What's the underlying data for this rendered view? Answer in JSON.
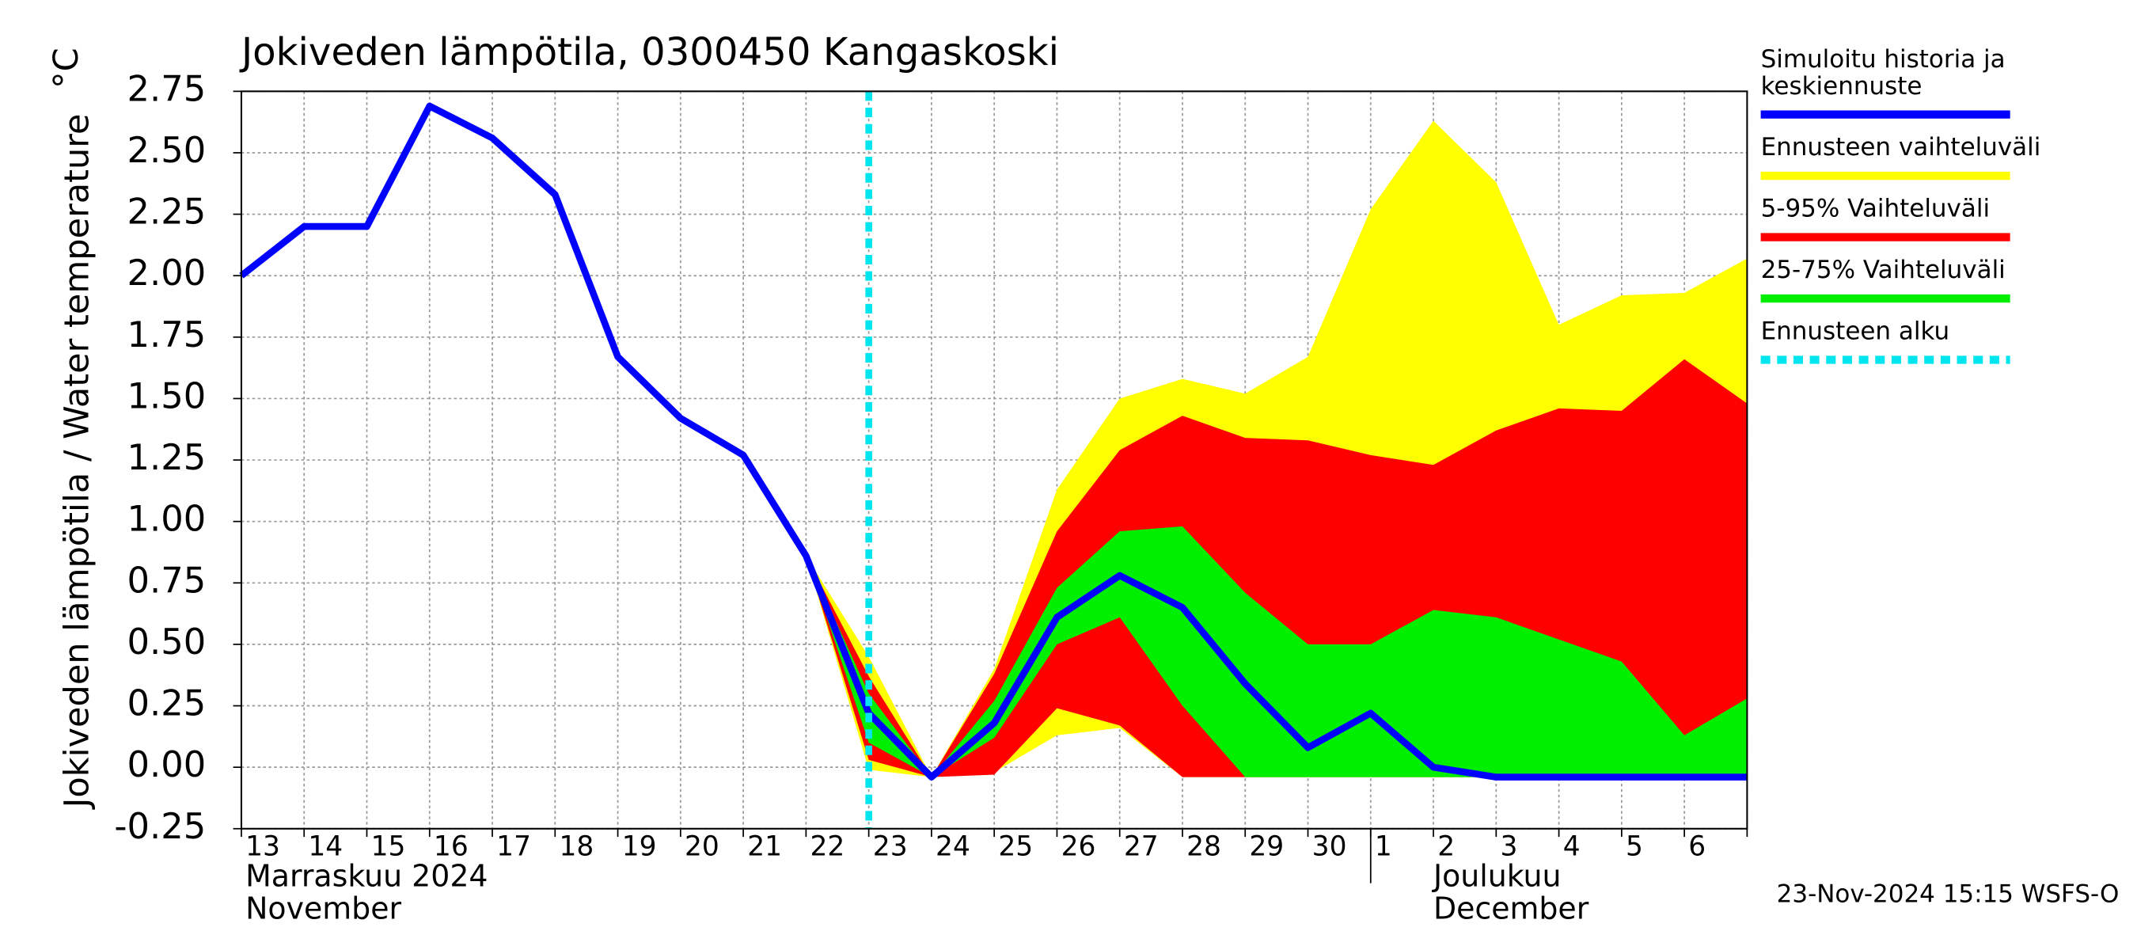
{
  "chart_data": {
    "type": "band-line",
    "title": "Jokiveden lämpötila, 0300450 Kangaskoski",
    "y_label": "Jokiveden lämpötila / Water temperature",
    "y_unit": "°C",
    "categories": [
      "13",
      "14",
      "15",
      "16",
      "17",
      "18",
      "19",
      "20",
      "21",
      "22",
      "23",
      "24",
      "25",
      "26",
      "27",
      "28",
      "29",
      "30",
      "1",
      "2",
      "3",
      "4",
      "5",
      "6",
      null
    ],
    "month_labels": [
      {
        "fi": "Marraskuu 2024",
        "en": "November",
        "start": 0
      },
      {
        "fi": "Joulukuu",
        "en": "December",
        "start": 18
      }
    ],
    "ylim": [
      -0.25,
      2.75
    ],
    "yticks": [
      {
        "value": -0.25,
        "label": "-0.25"
      },
      {
        "value": 0,
        "label": "0.00"
      },
      {
        "value": 0.25,
        "label": "0.25"
      },
      {
        "value": 0.5,
        "label": "0.50"
      },
      {
        "value": 0.75,
        "label": "0.75"
      },
      {
        "value": 1,
        "label": "1.00"
      },
      {
        "value": 1.25,
        "label": "1.25"
      },
      {
        "value": 1.5,
        "label": "1.50"
      },
      {
        "value": 1.75,
        "label": "1.75"
      },
      {
        "value": 2,
        "label": "2.00"
      },
      {
        "value": 2.25,
        "label": "2.25"
      },
      {
        "value": 2.5,
        "label": "2.50"
      },
      {
        "value": 2.75,
        "label": "2.75"
      }
    ],
    "grid": true,
    "series": [
      {
        "name": "Simuloitu historia ja keskiennuste",
        "color": "#0000ff",
        "values": [
          2.0,
          2.2,
          2.2,
          2.69,
          2.56,
          2.33,
          1.67,
          1.42,
          1.27,
          0.86,
          0.22,
          -0.04,
          0.18,
          0.61,
          0.78,
          0.65,
          0.34,
          0.08,
          0.22,
          0.0,
          -0.04,
          -0.04,
          -0.04,
          -0.04,
          -0.04
        ]
      },
      {
        "name": "Ennusteen vaihteluväli",
        "color": "#ffff00",
        "values": [
          null,
          null,
          null,
          null,
          null,
          null,
          null,
          null,
          null,
          0.86,
          0.45,
          -0.04,
          0.4,
          1.13,
          1.5,
          1.58,
          1.52,
          1.67,
          2.27,
          2.63,
          2.38,
          1.8,
          1.92,
          1.93,
          2.07
        ],
        "lower": [
          null,
          null,
          null,
          null,
          null,
          null,
          null,
          null,
          null,
          0.86,
          -0.01,
          -0.04,
          -0.02,
          0.13,
          0.16,
          -0.04,
          -0.04,
          -0.04,
          -0.04,
          -0.04,
          -0.04,
          -0.04,
          -0.04,
          -0.04,
          -0.04
        ]
      },
      {
        "name": "5-95% Vaihteluväli",
        "color": "#ff0000",
        "values": [
          null,
          null,
          null,
          null,
          null,
          null,
          null,
          null,
          null,
          0.86,
          0.37,
          -0.04,
          0.38,
          0.96,
          1.29,
          1.43,
          1.34,
          1.33,
          1.27,
          1.23,
          1.37,
          1.46,
          1.45,
          1.66,
          1.48
        ],
        "lower": [
          null,
          null,
          null,
          null,
          null,
          null,
          null,
          null,
          null,
          0.86,
          0.03,
          -0.04,
          -0.03,
          0.24,
          0.17,
          -0.04,
          -0.04,
          -0.04,
          -0.04,
          -0.04,
          -0.04,
          -0.04,
          -0.04,
          -0.04,
          -0.04
        ]
      },
      {
        "name": "25-75% Vaihteluväli",
        "color": "#00ee00",
        "values": [
          null,
          null,
          null,
          null,
          null,
          null,
          null,
          null,
          null,
          0.86,
          0.3,
          -0.04,
          0.27,
          0.73,
          0.96,
          0.98,
          0.71,
          0.5,
          0.5,
          0.64,
          0.61,
          0.52,
          0.43,
          0.13,
          0.28
        ],
        "lower": [
          null,
          null,
          null,
          null,
          null,
          null,
          null,
          null,
          null,
          0.86,
          0.1,
          -0.04,
          0.12,
          0.5,
          0.61,
          0.25,
          -0.04,
          -0.04,
          -0.04,
          -0.04,
          -0.04,
          -0.04,
          -0.04,
          -0.04,
          -0.04
        ]
      },
      {
        "name": "Ennusteen alku",
        "color": "#00e5ee",
        "x": 10
      }
    ],
    "timestamp": "23-Nov-2024 15:15 WSFS-O"
  }
}
